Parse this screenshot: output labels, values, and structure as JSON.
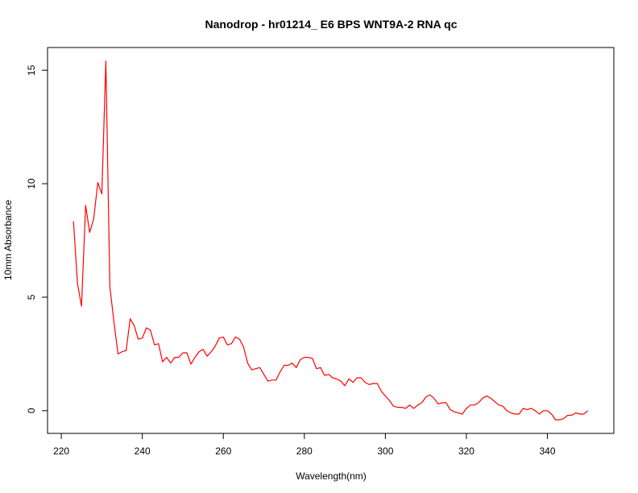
{
  "chart_data": {
    "type": "line",
    "title": "Nanodrop - hr01214_ E6 BPS WNT9A-2 RNA qc",
    "xlabel": "Wavelength(nm)",
    "ylabel": "10mm Absorbance",
    "xlim": [
      216.6,
      356.4
    ],
    "ylim": [
      -1.0,
      16.0
    ],
    "xticks": [
      220,
      240,
      260,
      280,
      300,
      320,
      340
    ],
    "yticks": [
      0,
      5,
      10,
      15
    ],
    "grid": false,
    "series": [
      {
        "color": "#ff0000",
        "x": [
          223,
          224,
          225,
          226,
          227,
          228,
          229,
          230,
          231,
          232,
          233,
          234,
          235,
          236,
          237,
          238,
          239,
          240,
          241,
          242,
          243,
          244,
          245,
          246,
          247,
          248,
          249,
          250,
          251,
          252,
          253,
          254,
          255,
          256,
          257,
          258,
          259,
          260,
          261,
          262,
          263,
          264,
          265,
          266,
          267,
          268,
          269,
          270,
          271,
          272,
          273,
          274,
          275,
          276,
          277,
          278,
          279,
          280,
          281,
          282,
          283,
          284,
          285,
          286,
          287,
          288,
          289,
          290,
          291,
          292,
          293,
          294,
          295,
          296,
          297,
          298,
          299,
          300,
          301,
          302,
          303,
          304,
          305,
          306,
          307,
          308,
          309,
          310,
          311,
          312,
          313,
          314,
          315,
          316,
          317,
          318,
          319,
          320,
          321,
          322,
          323,
          324,
          325,
          326,
          327,
          328,
          329,
          330,
          331,
          332,
          333,
          334,
          335,
          336,
          337,
          338,
          339,
          340,
          341,
          342,
          343,
          344,
          345,
          346,
          347,
          348,
          349,
          350
        ],
        "y": [
          8.35,
          5.6,
          4.6,
          9.05,
          7.85,
          8.45,
          10.05,
          9.55,
          15.4,
          5.45,
          3.9,
          2.5,
          2.6,
          2.65,
          4.05,
          3.75,
          3.15,
          3.2,
          3.65,
          3.55,
          2.9,
          2.95,
          2.15,
          2.35,
          2.1,
          2.35,
          2.35,
          2.55,
          2.55,
          2.05,
          2.35,
          2.6,
          2.7,
          2.4,
          2.6,
          2.85,
          3.2,
          3.25,
          2.9,
          2.95,
          3.25,
          3.15,
          2.8,
          2.1,
          1.8,
          1.85,
          1.9,
          1.6,
          1.3,
          1.35,
          1.35,
          1.7,
          2.0,
          2.0,
          2.1,
          1.9,
          2.25,
          2.35,
          2.35,
          2.3,
          1.85,
          1.9,
          1.55,
          1.6,
          1.45,
          1.4,
          1.3,
          1.1,
          1.4,
          1.25,
          1.45,
          1.45,
          1.25,
          1.15,
          1.2,
          1.2,
          0.85,
          0.65,
          0.45,
          0.2,
          0.15,
          0.15,
          0.1,
          0.25,
          0.1,
          0.25,
          0.35,
          0.6,
          0.7,
          0.55,
          0.3,
          0.35,
          0.35,
          0.05,
          -0.05,
          -0.1,
          -0.15,
          0.1,
          0.25,
          0.25,
          0.35,
          0.55,
          0.65,
          0.55,
          0.4,
          0.25,
          0.2,
          0.0,
          -0.1,
          -0.15,
          -0.15,
          0.1,
          0.05,
          0.1,
          0.0,
          -0.15,
          0.0,
          0.0,
          -0.15,
          -0.4,
          -0.4,
          -0.35,
          -0.2,
          -0.2,
          -0.1,
          -0.15,
          -0.15,
          0.0
        ]
      }
    ]
  }
}
